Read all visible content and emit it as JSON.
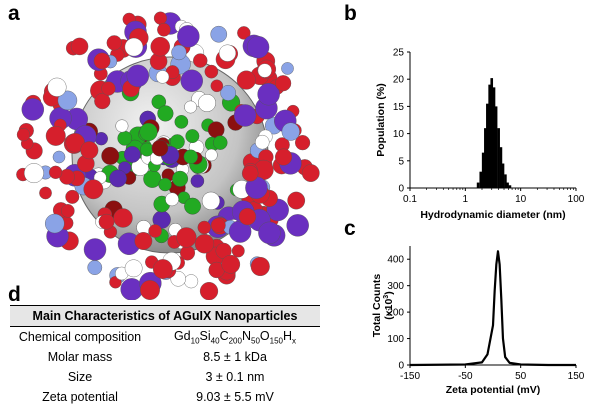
{
  "panels": {
    "a": "a",
    "b": "b",
    "c": "c",
    "d": "d"
  },
  "table": {
    "title": "Main Characteristics of AGuIX Nanoparticles",
    "rows": [
      {
        "label": "Chemical composition",
        "value": ""
      },
      {
        "label": "Molar mass",
        "value": "8.5 ± 1 kDa"
      },
      {
        "label": "Size",
        "value": "3 ± 0.1 nm"
      },
      {
        "label": "Zeta potential",
        "value": "9.03 ± 5.5 mV"
      }
    ],
    "formula_parts": [
      {
        "el": "Gd",
        "n": "10"
      },
      {
        "el": "Si",
        "n": "40"
      },
      {
        "el": "C",
        "n": "200"
      },
      {
        "el": "N",
        "n": "50"
      },
      {
        "el": "O",
        "n": "150"
      },
      {
        "el": "H",
        "n": "x"
      }
    ]
  },
  "chart_data": [
    {
      "type": "bar",
      "xlabel": "Hydrodynamic diameter (nm)",
      "ylabel": "Population (%)",
      "xscale": "log",
      "xlim": [
        0.1,
        100
      ],
      "ylim": [
        0,
        25
      ],
      "xticks": [
        "0.1",
        "1",
        "10",
        "100"
      ],
      "yticks": [
        "0",
        "5",
        "10",
        "15",
        "20",
        "25"
      ],
      "x": [
        1.7,
        1.9,
        2.1,
        2.3,
        2.5,
        2.75,
        3.0,
        3.3,
        3.6,
        4.0,
        4.4,
        4.8,
        5.3,
        5.8,
        6.4
      ],
      "values": [
        1.0,
        3.0,
        6.5,
        11.0,
        15.5,
        19.0,
        20.2,
        18.5,
        15.0,
        11.0,
        7.5,
        4.5,
        2.5,
        1.0,
        0.5
      ]
    },
    {
      "type": "line",
      "xlabel": "Zeta potential (mV)",
      "ylabel": "Total Counts",
      "ylabel_units": "(x10",
      "ylabel_exp": "3",
      "ylabel_close": ")",
      "xlim": [
        -150,
        150
      ],
      "ylim": [
        0,
        450
      ],
      "xticks": [
        "-150",
        "-50",
        "50",
        "150"
      ],
      "yticks": [
        "0",
        "100",
        "200",
        "300",
        "400"
      ],
      "x": [
        -150,
        -50,
        -20,
        -10,
        0,
        3,
        6,
        9,
        12,
        15,
        18,
        22,
        30,
        50,
        100,
        150
      ],
      "y": [
        0,
        2,
        10,
        40,
        150,
        280,
        380,
        430,
        380,
        250,
        100,
        30,
        8,
        2,
        0,
        0
      ]
    }
  ]
}
